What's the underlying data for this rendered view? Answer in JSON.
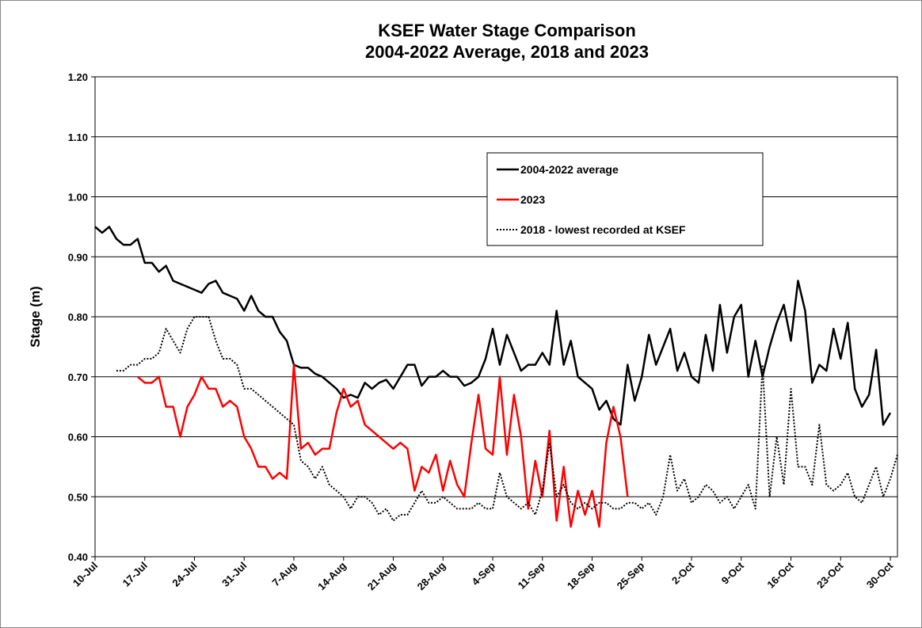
{
  "chart_data": {
    "type": "line",
    "title": "KSEF Water Stage Comparison",
    "subtitle": "2004-2022 Average, 2018 and 2023",
    "y_label": "Stage (m)",
    "categories": [
      "10-Jul",
      null,
      null,
      null,
      null,
      null,
      null,
      "17-Jul",
      null,
      null,
      null,
      null,
      null,
      null,
      "24-Jul",
      null,
      null,
      null,
      null,
      null,
      null,
      "31-Jul",
      null,
      null,
      null,
      null,
      null,
      null,
      "7-Aug",
      null,
      null,
      null,
      null,
      null,
      null,
      "14-Aug",
      null,
      null,
      null,
      null,
      null,
      null,
      "21-Aug",
      null,
      null,
      null,
      null,
      null,
      null,
      "28-Aug",
      null,
      null,
      null,
      null,
      null,
      null,
      "4-Sep",
      null,
      null,
      null,
      null,
      null,
      null,
      "11-Sep",
      null,
      null,
      null,
      null,
      null,
      null,
      "18-Sep",
      null,
      null,
      null,
      null,
      null,
      null,
      "25-Sep",
      null,
      null,
      null,
      null,
      null,
      null,
      "2-Oct",
      null,
      null,
      null,
      null,
      null,
      null,
      "9-Oct",
      null,
      null,
      null,
      null,
      null,
      null,
      "16-Oct",
      null,
      null,
      null,
      null,
      null,
      null,
      "23-Oct",
      null,
      null,
      null,
      null,
      null,
      null,
      "30-Oct",
      null
    ],
    "series": [
      {
        "name": "2004-2022 average",
        "color": "#000000",
        "line_style": "solid",
        "values": [
          0.95,
          0.94,
          0.95,
          0.93,
          0.92,
          0.92,
          0.93,
          0.89,
          0.89,
          0.875,
          0.885,
          0.86,
          0.855,
          0.85,
          0.845,
          0.84,
          0.855,
          0.86,
          0.84,
          0.835,
          0.83,
          0.81,
          0.835,
          0.81,
          0.8,
          0.8,
          0.775,
          0.76,
          0.72,
          0.715,
          0.715,
          0.705,
          0.7,
          0.69,
          0.68,
          0.665,
          0.67,
          0.665,
          0.69,
          0.68,
          0.69,
          0.695,
          0.68,
          0.7,
          0.72,
          0.72,
          0.685,
          0.7,
          0.7,
          0.71,
          0.7,
          0.7,
          0.685,
          0.69,
          0.7,
          0.73,
          0.78,
          0.72,
          0.77,
          0.74,
          0.71,
          0.72,
          0.72,
          0.74,
          0.72,
          0.81,
          0.72,
          0.76,
          0.7,
          0.69,
          0.68,
          0.645,
          0.66,
          0.63,
          0.62,
          0.72,
          0.66,
          0.7,
          0.77,
          0.72,
          0.75,
          0.78,
          0.71,
          0.74,
          0.7,
          0.69,
          0.77,
          0.71,
          0.82,
          0.74,
          0.8,
          0.82,
          0.7,
          0.76,
          0.7,
          0.75,
          0.79,
          0.82,
          0.76,
          0.86,
          0.81,
          0.69,
          0.72,
          0.71,
          0.78,
          0.73,
          0.79,
          0.68,
          0.65,
          0.67,
          0.745,
          0.62,
          0.64,
          null
        ]
      },
      {
        "name": "2023",
        "color": "#ff0000",
        "line_style": "solid",
        "values": [
          null,
          null,
          null,
          null,
          null,
          null,
          0.7,
          0.69,
          0.69,
          0.7,
          0.65,
          0.65,
          0.6,
          0.65,
          0.67,
          0.7,
          0.68,
          0.68,
          0.65,
          0.66,
          0.65,
          0.6,
          0.58,
          0.55,
          0.55,
          0.53,
          0.54,
          0.53,
          0.72,
          0.58,
          0.59,
          0.57,
          0.58,
          0.58,
          0.64,
          0.68,
          0.65,
          0.66,
          0.62,
          0.61,
          0.6,
          0.59,
          0.58,
          0.59,
          0.58,
          0.51,
          0.55,
          0.54,
          0.57,
          0.51,
          0.56,
          0.52,
          0.5,
          0.59,
          0.67,
          0.58,
          0.57,
          0.7,
          0.57,
          0.67,
          0.6,
          0.48,
          0.56,
          0.5,
          0.61,
          0.46,
          0.55,
          0.45,
          0.51,
          0.47,
          0.51,
          0.45,
          0.59,
          0.65,
          0.6,
          0.5,
          null,
          null,
          null,
          null,
          null,
          null,
          null,
          null,
          null,
          null,
          null,
          null,
          null,
          null,
          null,
          null,
          null,
          null,
          null,
          null,
          null,
          null,
          null,
          null,
          null,
          null,
          null,
          null,
          null,
          null,
          null,
          null,
          null,
          null,
          null,
          null,
          null,
          null
        ]
      },
      {
        "name": "2018 - lowest recorded at KSEF",
        "color": "#000000",
        "line_style": "dotted",
        "values": [
          null,
          null,
          null,
          0.71,
          0.71,
          0.72,
          0.72,
          0.73,
          0.73,
          0.74,
          0.78,
          0.76,
          0.74,
          0.78,
          0.8,
          0.8,
          0.8,
          0.76,
          0.73,
          0.73,
          0.72,
          0.68,
          0.68,
          0.67,
          0.66,
          0.65,
          0.64,
          0.63,
          0.62,
          0.56,
          0.55,
          0.53,
          0.55,
          0.52,
          0.51,
          0.5,
          0.48,
          0.5,
          0.5,
          0.49,
          0.47,
          0.48,
          0.46,
          0.47,
          0.47,
          0.49,
          0.51,
          0.49,
          0.49,
          0.5,
          0.49,
          0.48,
          0.48,
          0.48,
          0.49,
          0.48,
          0.48,
          0.54,
          0.5,
          0.49,
          0.48,
          0.49,
          0.47,
          0.51,
          0.59,
          0.5,
          0.52,
          0.49,
          0.48,
          0.49,
          0.48,
          0.49,
          0.49,
          0.48,
          0.48,
          0.49,
          0.49,
          0.48,
          0.49,
          0.47,
          0.5,
          0.57,
          0.51,
          0.53,
          0.49,
          0.5,
          0.52,
          0.51,
          0.49,
          0.5,
          0.48,
          0.5,
          0.52,
          0.48,
          0.72,
          0.5,
          0.6,
          0.52,
          0.68,
          0.55,
          0.55,
          0.52,
          0.62,
          0.52,
          0.51,
          0.52,
          0.54,
          0.5,
          0.49,
          0.52,
          0.55,
          0.5,
          0.53,
          0.57
        ]
      }
    ],
    "ylim": [
      0.4,
      1.2
    ],
    "yticks": [
      {
        "value": 0.4,
        "label": "0.40"
      },
      {
        "value": 0.5,
        "label": "0.50"
      },
      {
        "value": 0.6,
        "label": "0.60"
      },
      {
        "value": 0.7,
        "label": "0.70"
      },
      {
        "value": 0.8,
        "label": "0.80"
      },
      {
        "value": 0.9,
        "label": "0.90"
      },
      {
        "value": 1.0,
        "label": "1.00"
      },
      {
        "value": 1.1,
        "label": "1.10"
      },
      {
        "value": 1.2,
        "label": "1.20"
      }
    ],
    "grid": true,
    "legend": "upper right"
  }
}
